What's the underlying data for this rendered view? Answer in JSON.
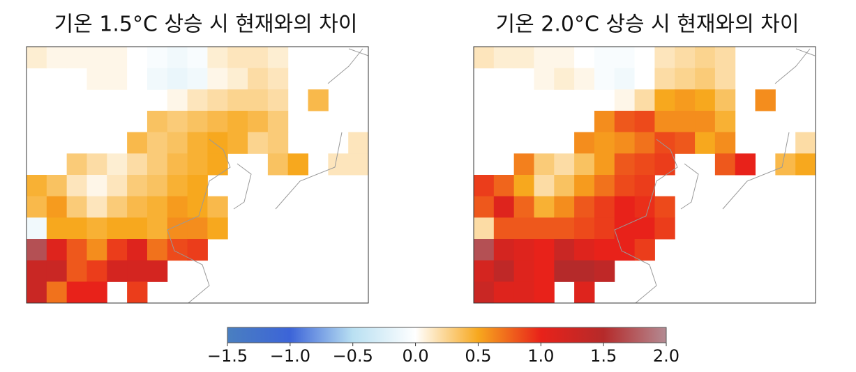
{
  "chart_data": [
    {
      "type": "heatmap",
      "title": "기온 1.5°C 상승 시 현재와의 차이",
      "values": [
        [
          0.1,
          0.05,
          0.05,
          0.05,
          0.05,
          0.0,
          -0.05,
          -0.1,
          -0.05,
          0.1,
          0.15,
          0.15,
          0.1,
          null,
          null,
          null,
          null
        ],
        [
          null,
          null,
          null,
          0.05,
          0.05,
          0.0,
          -0.1,
          -0.15,
          -0.1,
          0.05,
          0.1,
          0.2,
          0.15,
          null,
          null,
          null,
          null
        ],
        [
          null,
          null,
          null,
          null,
          null,
          null,
          null,
          0.05,
          0.15,
          0.2,
          0.25,
          0.25,
          0.2,
          null,
          0.4,
          null,
          null
        ],
        [
          null,
          null,
          null,
          null,
          null,
          null,
          0.35,
          0.3,
          0.35,
          0.4,
          0.45,
          0.4,
          0.3,
          null,
          null,
          null,
          null
        ],
        [
          null,
          null,
          null,
          null,
          null,
          0.4,
          0.3,
          0.35,
          0.45,
          0.5,
          0.45,
          0.25,
          0.3,
          null,
          null,
          null,
          0.15
        ],
        [
          null,
          null,
          0.3,
          0.2,
          0.1,
          0.2,
          0.3,
          0.4,
          0.45,
          0.5,
          null,
          null,
          0.35,
          0.5,
          null,
          0.15,
          0.15
        ],
        [
          0.45,
          0.35,
          0.15,
          0.05,
          0.15,
          0.3,
          0.35,
          0.45,
          0.5,
          null,
          null,
          null,
          null,
          null,
          null,
          null,
          null
        ],
        [
          0.4,
          0.55,
          0.3,
          0.15,
          0.3,
          0.4,
          0.45,
          0.55,
          0.5,
          0.4,
          null,
          null,
          null,
          null,
          null,
          null,
          null
        ],
        [
          -0.1,
          0.5,
          0.5,
          0.45,
          0.5,
          0.5,
          0.45,
          0.6,
          0.6,
          0.5,
          null,
          null,
          null,
          null,
          null,
          null,
          null
        ],
        [
          1.7,
          1.1,
          0.8,
          0.6,
          0.9,
          1.1,
          0.7,
          0.85,
          0.9,
          null,
          null,
          null,
          null,
          null,
          null,
          null,
          null
        ],
        [
          1.3,
          1.3,
          0.8,
          0.9,
          1.2,
          1.2,
          1.2,
          null,
          null,
          null,
          null,
          null,
          null,
          null,
          null,
          null,
          null
        ],
        [
          1.3,
          0.7,
          1.0,
          1.0,
          null,
          0.9,
          null,
          null,
          null,
          null,
          null,
          null,
          null,
          null,
          null,
          null,
          null
        ]
      ]
    },
    {
      "type": "heatmap",
      "title": "기온 2.0°C 상승 시 현재와의 차이",
      "values": [
        [
          0.15,
          0.1,
          0.1,
          0.05,
          0.05,
          0.0,
          -0.05,
          -0.05,
          0.0,
          0.15,
          0.2,
          0.25,
          0.2,
          null,
          null,
          null,
          null
        ],
        [
          null,
          null,
          null,
          0.05,
          0.1,
          0.05,
          -0.05,
          -0.1,
          0.0,
          0.2,
          0.25,
          0.3,
          0.2,
          null,
          null,
          null,
          null
        ],
        [
          null,
          null,
          null,
          null,
          null,
          null,
          null,
          0.05,
          0.2,
          0.5,
          0.55,
          0.5,
          0.35,
          null,
          0.6,
          null,
          null
        ],
        [
          null,
          null,
          null,
          null,
          null,
          null,
          0.6,
          0.8,
          0.85,
          0.6,
          0.6,
          0.6,
          0.45,
          null,
          null,
          null,
          null
        ],
        [
          null,
          null,
          null,
          null,
          null,
          0.6,
          0.55,
          0.6,
          0.7,
          0.85,
          0.8,
          0.5,
          0.6,
          null,
          null,
          null,
          0.2
        ],
        [
          null,
          null,
          0.65,
          0.3,
          0.2,
          0.35,
          0.55,
          0.8,
          0.85,
          0.9,
          null,
          null,
          0.8,
          1.0,
          null,
          0.4,
          0.5
        ],
        [
          0.9,
          0.75,
          0.5,
          0.2,
          0.35,
          0.55,
          0.7,
          0.85,
          0.9,
          null,
          null,
          null,
          null,
          null,
          null,
          null,
          null
        ],
        [
          0.8,
          1.1,
          0.75,
          0.45,
          0.6,
          0.8,
          0.9,
          1.0,
          0.95,
          0.85,
          null,
          null,
          null,
          null,
          null,
          null,
          null
        ],
        [
          0.2,
          0.8,
          0.8,
          0.8,
          0.8,
          0.85,
          0.9,
          1.0,
          1.0,
          0.9,
          null,
          null,
          null,
          null,
          null,
          null,
          null
        ],
        [
          1.7,
          1.2,
          1.1,
          1.0,
          1.3,
          1.1,
          1.0,
          1.0,
          0.9,
          null,
          null,
          null,
          null,
          null,
          null,
          null,
          null
        ],
        [
          1.2,
          1.4,
          1.1,
          1.0,
          1.5,
          1.5,
          1.4,
          null,
          null,
          null,
          null,
          null,
          null,
          null,
          null,
          null,
          null
        ],
        [
          1.3,
          1.1,
          1.1,
          1.0,
          null,
          1.1,
          null,
          null,
          null,
          null,
          null,
          null,
          null,
          null,
          null,
          null,
          null
        ]
      ]
    }
  ],
  "colorbar": {
    "clim": [
      -1.5,
      2.0
    ],
    "ticks": [
      {
        "value": -1.5,
        "label": "−1.5"
      },
      {
        "value": -1.0,
        "label": "−1.0"
      },
      {
        "value": -0.5,
        "label": "−0.5"
      },
      {
        "value": 0.0,
        "label": "0.0"
      },
      {
        "value": 0.5,
        "label": "0.5"
      },
      {
        "value": 1.0,
        "label": "1.0"
      },
      {
        "value": 1.5,
        "label": "1.5"
      },
      {
        "value": 2.0,
        "label": "2.0"
      }
    ],
    "colors": [
      "#4a7fc0",
      "#3c64d8",
      "#b9e0f2",
      "#ffffff",
      "#f7a81e",
      "#e8221a",
      "#b52a2a",
      "#b38a92"
    ]
  }
}
